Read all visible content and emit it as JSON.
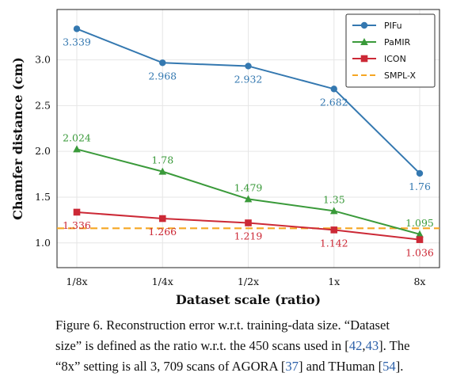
{
  "chart_data": {
    "type": "line",
    "categories": [
      "1/8x",
      "1/4x",
      "1/2x",
      "1x",
      "8x"
    ],
    "xlabel": "Dataset scale (ratio)",
    "ylabel": "Chamfer distance (cm)",
    "ylim": [
      0.73,
      3.55
    ],
    "yticks": [
      1.0,
      1.5,
      2.0,
      2.5,
      3.0
    ],
    "ytick_labels": [
      "1.0",
      "1.5",
      "2.0",
      "2.5",
      "3.0"
    ],
    "grid": true,
    "legend_position": "top-right",
    "series": [
      {
        "name": "PIFu",
        "color": "#3478b0",
        "marker": "circle",
        "values": [
          3.339,
          2.968,
          2.932,
          2.682,
          1.76
        ],
        "labels": [
          "3.339",
          "2.968",
          "2.932",
          "2.682",
          "1.76"
        ],
        "label_side": [
          "below",
          "below",
          "below",
          "below",
          "below"
        ]
      },
      {
        "name": "PaMIR",
        "color": "#3a9a3a",
        "marker": "triangle",
        "values": [
          2.024,
          1.78,
          1.479,
          1.35,
          1.095
        ],
        "labels": [
          "2.024",
          "1.78",
          "1.479",
          "1.35",
          "1.095"
        ],
        "label_side": [
          "above",
          "above",
          "above",
          "above",
          "above"
        ]
      },
      {
        "name": "ICON",
        "color": "#cc2936",
        "marker": "square",
        "values": [
          1.336,
          1.266,
          1.219,
          1.142,
          1.036
        ],
        "labels": [
          "1.336",
          "1.266",
          "1.219",
          "1.142",
          "1.036"
        ],
        "label_side": [
          "below",
          "below",
          "below",
          "below",
          "below"
        ]
      },
      {
        "name": "SMPL-X",
        "color": "#f5a623",
        "marker": "none",
        "dashed": true,
        "values": [
          1.16,
          1.16,
          1.16,
          1.16,
          1.16
        ],
        "labels": [],
        "label_side": []
      }
    ]
  },
  "caption": {
    "l1": "Figure 6. Reconstruction error w.r.t. training-data size. “Dataset",
    "l2a": "size” is defined as the ratio w.r.t. the 450 scans used in [",
    "l2c1": "42",
    "l2s": ",",
    "l2c2": "43",
    "l2b": "]. The",
    "l3a": "“8x” setting is all 3, 709 scans of AGORA [",
    "l3c1": "37",
    "l3b": "] and THuman [",
    "l3c2": "54",
    "l3e": "]."
  }
}
